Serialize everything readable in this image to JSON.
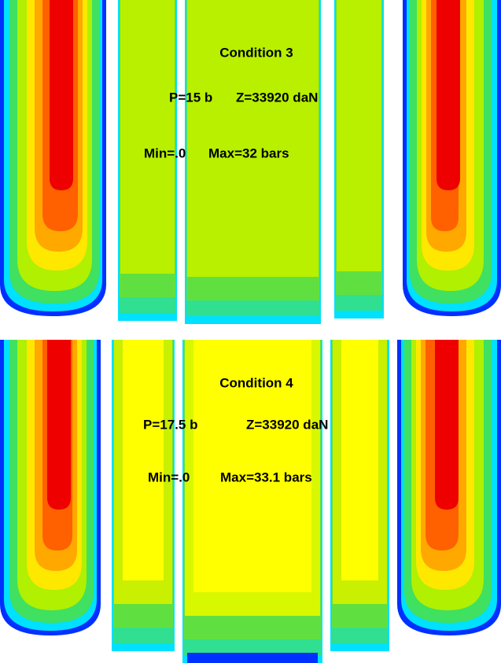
{
  "panels": [
    {
      "title": "Condition 3",
      "pressure": "P=15 b",
      "load": "Z=33920 daN",
      "min": "Min=.0",
      "max": "Max=32 bars"
    },
    {
      "title": "Condition 4",
      "pressure": "P=17.5 b",
      "load": "Z=33920 daN",
      "min": "Min=.0",
      "max": "Max=33.1 bars"
    }
  ]
}
